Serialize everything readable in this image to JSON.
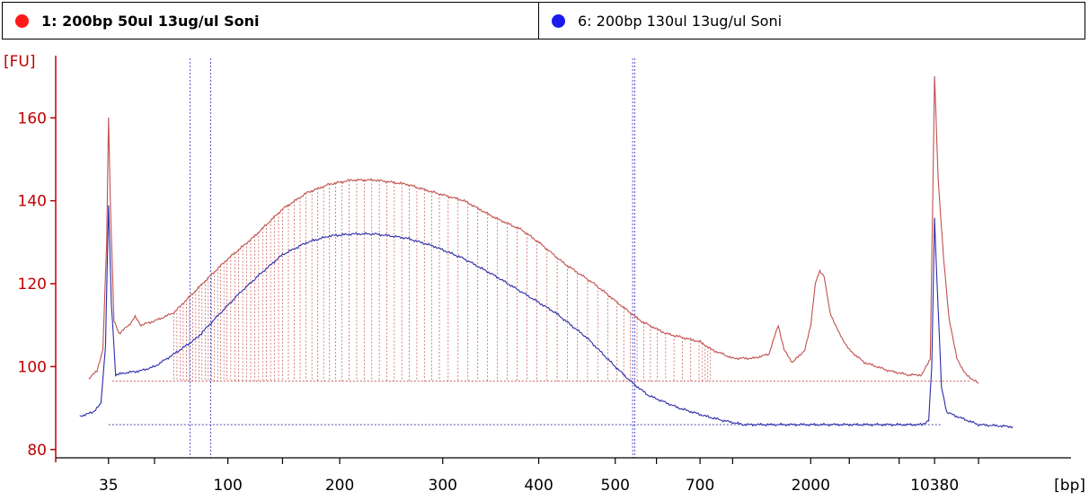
{
  "legend": {
    "items": [
      {
        "label": "1: 200bp 50ul 13ug/ul Soni",
        "color": "#ff1a1a"
      },
      {
        "label": "6: 200bp 130ul 13ug/ul Soni",
        "color": "#1a1aee"
      }
    ]
  },
  "chart_data": {
    "type": "line",
    "ylabel": "[FU]",
    "xlabel": "[bp]",
    "ylim": [
      78,
      175
    ],
    "y_ticks": [
      80,
      100,
      120,
      140,
      160
    ],
    "x_ticks": [
      {
        "label": "35",
        "x": 35
      },
      {
        "label": "",
        "x": 50
      },
      {
        "label": "100",
        "x": 100
      },
      {
        "label": "",
        "x": 150
      },
      {
        "label": "200",
        "x": 200
      },
      {
        "label": "300",
        "x": 300
      },
      {
        "label": "400",
        "x": 400
      },
      {
        "label": "500",
        "x": 500
      },
      {
        "label": "",
        "x": 600
      },
      {
        "label": "700",
        "x": 700
      },
      {
        "label": "",
        "x": 1000
      },
      {
        "label": "2000",
        "x": 2000
      },
      {
        "label": "",
        "x": 3000
      },
      {
        "label": "",
        "x": 5000
      },
      {
        "label": "10380",
        "x": 10380
      },
      {
        "label": "",
        "x": 15000
      }
    ],
    "x_scale_points": [
      {
        "bp": 35,
        "pos": 0.052
      },
      {
        "bp": 50,
        "pos": 0.0973
      },
      {
        "bp": 100,
        "pos": 0.1696
      },
      {
        "bp": 150,
        "pos": 0.2234
      },
      {
        "bp": 200,
        "pos": 0.2797
      },
      {
        "bp": 300,
        "pos": 0.3812
      },
      {
        "bp": 400,
        "pos": 0.4757
      },
      {
        "bp": 500,
        "pos": 0.5511
      },
      {
        "bp": 600,
        "pos": 0.5917
      },
      {
        "bp": 700,
        "pos": 0.6346
      },
      {
        "bp": 1000,
        "pos": 0.6667
      },
      {
        "bp": 2000,
        "pos": 0.7436
      },
      {
        "bp": 3000,
        "pos": 0.7816
      },
      {
        "bp": 5000,
        "pos": 0.8307
      },
      {
        "bp": 10380,
        "pos": 0.8656
      },
      {
        "bp": 15000,
        "pos": 0.9089
      }
    ],
    "series": [
      {
        "name": "1: 200bp 50ul 13ug/ul Soni",
        "color": "#c0504d",
        "points": [
          [
            22,
            96.5
          ],
          [
            30,
            97
          ],
          [
            32,
            99
          ],
          [
            33.5,
            104
          ],
          [
            34.5,
            130
          ],
          [
            35,
            160
          ],
          [
            35.5,
            140
          ],
          [
            36.5,
            111
          ],
          [
            38,
            108
          ],
          [
            41,
            110
          ],
          [
            43,
            112
          ],
          [
            45,
            110
          ],
          [
            50,
            111
          ],
          [
            60,
            113
          ],
          [
            70,
            117
          ],
          [
            85,
            122
          ],
          [
            100,
            126
          ],
          [
            120,
            131
          ],
          [
            150,
            138
          ],
          [
            170,
            142
          ],
          [
            190,
            144
          ],
          [
            210,
            145
          ],
          [
            230,
            145
          ],
          [
            260,
            144
          ],
          [
            290,
            142
          ],
          [
            320,
            140
          ],
          [
            350,
            136
          ],
          [
            380,
            133
          ],
          [
            400,
            130
          ],
          [
            430,
            125
          ],
          [
            470,
            120
          ],
          [
            510,
            115
          ],
          [
            560,
            111
          ],
          [
            620,
            108
          ],
          [
            700,
            106
          ],
          [
            800,
            104
          ],
          [
            900,
            103
          ],
          [
            1000,
            102
          ],
          [
            1200,
            102
          ],
          [
            1380,
            103
          ],
          [
            1500,
            110
          ],
          [
            1580,
            104
          ],
          [
            1700,
            101
          ],
          [
            1900,
            104
          ],
          [
            2000,
            110
          ],
          [
            2100,
            120
          ],
          [
            2200,
            123
          ],
          [
            2300,
            122
          ],
          [
            2450,
            113
          ],
          [
            2700,
            108
          ],
          [
            3000,
            104
          ],
          [
            3500,
            101
          ],
          [
            4500,
            99
          ],
          [
            6000,
            98
          ],
          [
            8000,
            98
          ],
          [
            9500,
            102
          ],
          [
            10000,
            140
          ],
          [
            10380,
            170
          ],
          [
            10700,
            145
          ],
          [
            11200,
            126
          ],
          [
            11700,
            112
          ],
          [
            12500,
            102
          ],
          [
            13500,
            98
          ],
          [
            15000,
            96
          ]
        ]
      },
      {
        "name": "6: 200bp 130ul 13ug/ul Soni",
        "color": "#2c2ca8",
        "points": [
          [
            22,
            87.5
          ],
          [
            28,
            88
          ],
          [
            31,
            89
          ],
          [
            33,
            91
          ],
          [
            34.2,
            105
          ],
          [
            35,
            139
          ],
          [
            35.8,
            115
          ],
          [
            37,
            98
          ],
          [
            40,
            98.5
          ],
          [
            45,
            99
          ],
          [
            50,
            100
          ],
          [
            60,
            103
          ],
          [
            75,
            107
          ],
          [
            90,
            112
          ],
          [
            110,
            118
          ],
          [
            130,
            123
          ],
          [
            150,
            127
          ],
          [
            170,
            130
          ],
          [
            190,
            131.5
          ],
          [
            210,
            132
          ],
          [
            230,
            132
          ],
          [
            260,
            131
          ],
          [
            290,
            129
          ],
          [
            320,
            126
          ],
          [
            350,
            122
          ],
          [
            380,
            118
          ],
          [
            420,
            113
          ],
          [
            460,
            107
          ],
          [
            500,
            100
          ],
          [
            540,
            96
          ],
          [
            580,
            93
          ],
          [
            650,
            90
          ],
          [
            750,
            88
          ],
          [
            900,
            87
          ],
          [
            1100,
            86
          ],
          [
            1500,
            86
          ],
          [
            3000,
            86
          ],
          [
            6000,
            86
          ],
          [
            8000,
            86
          ],
          [
            9200,
            87
          ],
          [
            9800,
            100
          ],
          [
            10200,
            125
          ],
          [
            10380,
            136
          ],
          [
            10600,
            120
          ],
          [
            11000,
            95
          ],
          [
            11500,
            89
          ],
          [
            12500,
            88
          ],
          [
            15000,
            86
          ],
          [
            20000,
            85.5
          ]
        ]
      }
    ],
    "markers_bp": [
      70,
      85,
      540,
      545
    ]
  }
}
